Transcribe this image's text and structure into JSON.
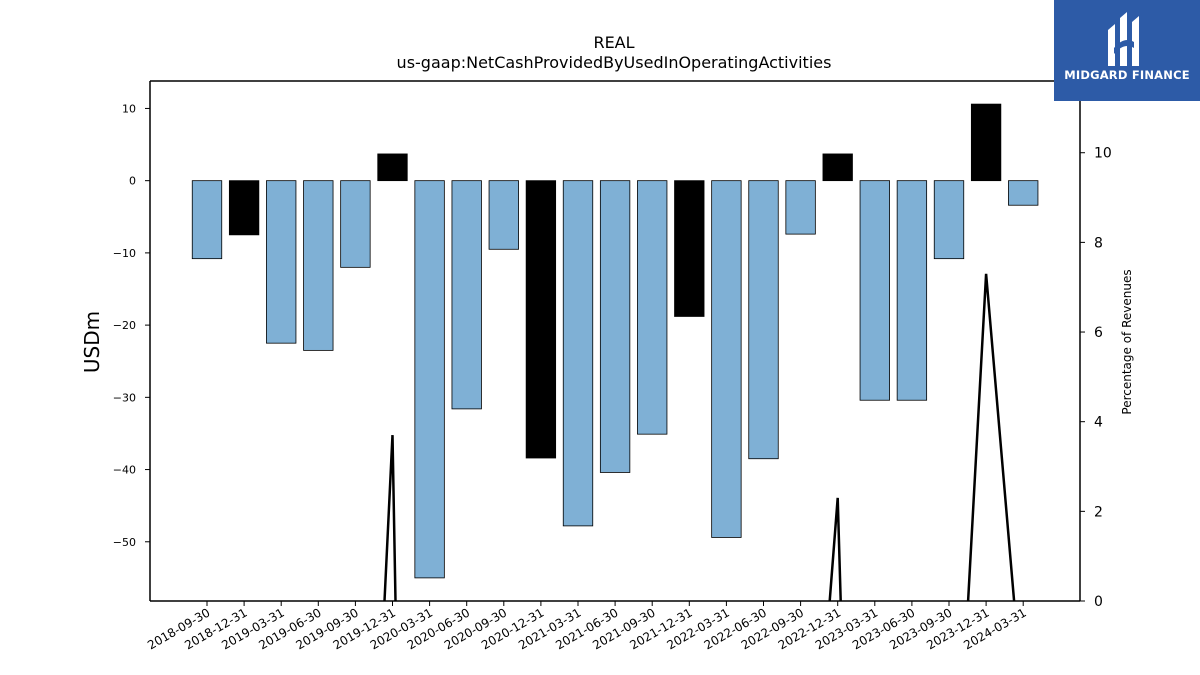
{
  "chart_data": {
    "type": "bar",
    "title": "REAL",
    "subtitle": "us-gaap:NetCashProvidedByUsedInOperatingActivities",
    "ylabel": "USDm",
    "y2label": "Percentage of Revenues",
    "ylim": [
      -58.2,
      13.8
    ],
    "y2lim": [
      0,
      11.6
    ],
    "yticks": [
      10,
      0,
      -10,
      -20,
      -30,
      -40,
      -50
    ],
    "y2ticks": [
      0,
      2,
      4,
      6,
      8,
      10
    ],
    "categories": [
      "2018-09-30",
      "2018-12-31",
      "2019-03-31",
      "2019-06-30",
      "2019-09-30",
      "2019-12-31",
      "2020-03-31",
      "2020-06-30",
      "2020-09-30",
      "2020-12-31",
      "2021-03-31",
      "2021-06-30",
      "2021-09-30",
      "2021-12-31",
      "2022-03-31",
      "2022-06-30",
      "2022-09-30",
      "2022-12-31",
      "2023-03-31",
      "2023-06-30",
      "2023-09-30",
      "2023-12-31",
      "2024-03-31"
    ],
    "values": [
      -10.8,
      -7.5,
      -22.5,
      -23.5,
      -12.0,
      3.7,
      -55.0,
      -31.6,
      -9.5,
      -38.4,
      -47.8,
      -40.4,
      -35.1,
      -18.8,
      -49.4,
      -38.5,
      -7.4,
      3.7,
      -30.4,
      -30.4,
      -10.8,
      10.6,
      -3.4
    ],
    "highlight": [
      false,
      true,
      false,
      false,
      false,
      true,
      false,
      false,
      false,
      true,
      false,
      false,
      false,
      true,
      false,
      false,
      false,
      true,
      false,
      false,
      false,
      true,
      false
    ],
    "line_values": [
      0,
      0,
      0,
      0,
      0,
      3.7,
      0,
      0,
      0,
      0,
      0,
      0,
      0,
      0,
      0,
      0,
      0,
      2.3,
      0,
      0,
      0,
      7.3,
      0
    ],
    "colors": {
      "bar": "#7fb0d5",
      "highlight_bar": "#000000",
      "line": "#000000"
    },
    "grid": false
  },
  "logo": {
    "text": "MIDGARD FINANCE",
    "background": "#2d5ba7"
  }
}
